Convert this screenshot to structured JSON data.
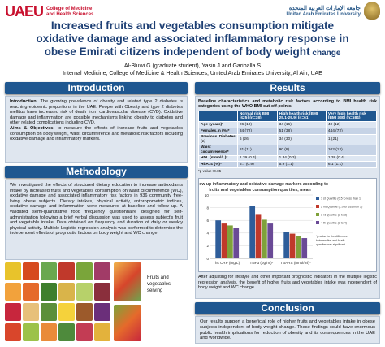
{
  "header": {
    "uaeu_logo": "UAEU",
    "college_line1": "College of Medicine",
    "college_line2": "and Health Sciences",
    "univ_arabic": "جامعة الإمارات العربية المتحدة",
    "univ_english": "United Arab Emirates University",
    "title_line1": "Increased fruits and vegetables consumption mitigate",
    "title_line2": "oxidative damage and associated inflammatory response in",
    "title_line3_main": "obese Emirati citizens independent of body weight",
    "title_line3_end": " change",
    "authors": "Al-Bluwi G (graduate student), Yasin J and Gariballa S",
    "affiliation": "Internal Medicine, College of Medicine & Health Sciences, United Arab Emirates University, Al Ain, UAE"
  },
  "introduction": {
    "heading": "Introduction",
    "intro_label": "Introduction:",
    "intro_text": " The growing prevalence of obesity and related type 2 diabetes is reaching epidemic proportions in the UAE. People with Obesity and type 2 diabetes mellitus have increased risk of death from cardiovascular disease (CVD). Oxidative damage and inflammation are possible mechanisms linking obesity to diabetes and other related complications including CVD.",
    "aims_label": "Aims & Objectives:",
    "aims_text": " to measure the effects of increase fruits and vegetables consumption on body weight, waist circumference and metabolic risk factors including oxidative damage and inflammatory markers."
  },
  "methodology": {
    "heading": "Methodology",
    "text": "We investigated the effects of structured dietary education to increase antioxidants intake by increased fruits and vegetables consumption on waist circumference (WC), oxidative damage and associated inflammatory risk factors in 936 community free-living obese subjects. Dietary intakes, physical activity, anthropometric indices, oxidative damage and inflammation were measured at baseline and follow up. A validated semi-quantitative food frequency questionnaire designed for self-administration following a brief verbal discussion was used to assess subject's fruit and vegetable intake. Data obtained on frequency and duration of daily or weekly physical activity. Multiple Logistic regression analysis was performed to determine the independent effects of prognostic factors on body weight and WC change.",
    "image_caption": "Fruits and vegetables serving"
  },
  "results": {
    "heading": "Results",
    "table_caption": "Baseline characteristics and metabolic risk factors according to BMI health risk categories using the WHO BMI cut-off-points",
    "table_headers": [
      "",
      "Normal risk BMI [≤25] (n=38)",
      "High health risk [BMI 25.1-29.9] (n=61)",
      "Very high health risk [BMI ≥30] (n=584)"
    ],
    "table_rows": [
      [
        "Age (years)*",
        "26 (10)",
        "34 (16)",
        "40 (12)"
      ],
      [
        "Females, n (%)*",
        "34 (72)",
        "51 (38)",
        "444 (72)"
      ],
      [
        "Previous Diabetes (n)",
        "6 (26)",
        "34 (30)",
        "1 (21)"
      ],
      [
        "Waist circumference*",
        "81 (11)",
        "90 (8)",
        "102 (12)"
      ],
      [
        "HDL (mmol/L)*",
        "1.39 (0.4)",
        "1.34 (0.3)",
        "1.38 (0.4)"
      ],
      [
        "HbA1c (%)*",
        "5.7 (0.9)",
        "5.9 (1.1)",
        "6.1 (1.1)"
      ]
    ],
    "table_note": "*p value<0.05",
    "chart_note": "*p-value for the difference between first and fourth quartiles was significant",
    "after_text": "After adjusting for lifestyle and other important prognostic indicators in the multiple logistic regression analysis, the benefit of higher fruits and vegetables intake was independent of body weight and WC change."
  },
  "chart_data": {
    "type": "bar",
    "title": "Follow up inflammatory and oxidative damage markers according to fruits and vegetables consumption quartiles, mean",
    "categories": [
      "hs CRP (mg/L)",
      "TNFα (pg/ml)*",
      "TBARS (nmol/ml)*"
    ],
    "series": [
      {
        "name": "1 st Quartile (0.5 to less than 1)",
        "color": "#2e5d9a",
        "values": [
          6.0,
          8.3,
          4.2
        ]
      },
      {
        "name": "2 nd Quartile (1.0 to less than 2)",
        "color": "#c0392b",
        "values": [
          5.5,
          7.0,
          3.9
        ]
      },
      {
        "name": "3 rd Quartile (2 to 3)",
        "color": "#7fa13a",
        "values": [
          5.2,
          6.1,
          3.5
        ]
      },
      {
        "name": "4 th Quartile (3 to 4)",
        "color": "#6a4a96",
        "values": [
          4.8,
          5.5,
          3.2
        ]
      }
    ],
    "yticks": [
      "0",
      "2",
      "4",
      "6",
      "8",
      "10"
    ],
    "ylim": [
      0,
      10
    ],
    "grid": true,
    "legend_position": "right"
  },
  "conclusion": {
    "heading": "Conclusion",
    "text": "Our results support a beneficial role of higher fruits and vegetables intake in obese subjects independent of body weight change. These findings could have enormous public health implications for reduction of obesity and its consequences in the UAE and worldwide."
  },
  "colors": {
    "accent": "#1f5790",
    "title": "#1d3f74",
    "brand_red": "#c8102e",
    "panel": "#dfe6ef"
  }
}
